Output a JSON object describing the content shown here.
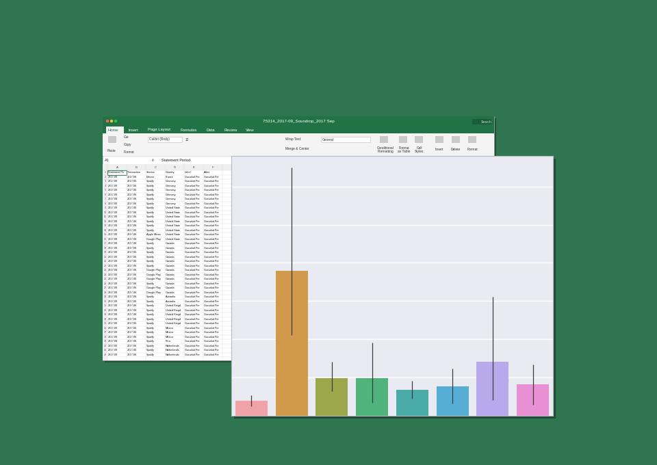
{
  "chart_data": {
    "type": "bar",
    "categories": [
      null,
      null,
      null,
      null,
      null,
      null,
      null,
      null
    ],
    "values": [
      0.39,
      3.79,
      0.98,
      0.98,
      0.68,
      0.77,
      1.41,
      0.82
    ],
    "ci_low": [
      0.25,
      2.11,
      0.64,
      0.34,
      0.45,
      0.32,
      0.41,
      0.29
    ],
    "ci_high": [
      0.54,
      6.5,
      1.41,
      1.91,
      0.91,
      1.23,
      3.11,
      1.34
    ],
    "colors": [
      "#f1a2a9",
      "#d0994b",
      "#9ca64b",
      "#4fb47b",
      "#4aaba8",
      "#57aed5",
      "#b8a8ec",
      "#e990d5"
    ],
    "ylim": [
      0,
      6.8
    ],
    "yticks": [
      0,
      1,
      2,
      3,
      4,
      5,
      6
    ],
    "grid": true,
    "tick_labels": false
  },
  "spreadsheet": {
    "window_title": "75314_2017-09_Soundrop_2017 Sep",
    "search": "Search",
    "tabs": [
      "Home",
      "Insert",
      "Page Layout",
      "Formulas",
      "Data",
      "Review",
      "View"
    ],
    "ribbon": [
      "Paste",
      "Cut",
      "Copy",
      "Format",
      "Calibri (Body)",
      "12",
      "Wrap Text",
      "Merge & Center",
      "General",
      "Conditional\nFormatting",
      "Format\nas Table",
      "Cell\nStyles",
      "Insert",
      "Delete",
      "Format"
    ],
    "name_box": "A1",
    "formula_prefix": "fx",
    "formula": "Statement Period",
    "columns": [
      "A",
      "B",
      "C",
      "D",
      "E",
      "F"
    ],
    "row_numbers": [
      1,
      2,
      3,
      4,
      5,
      6,
      7,
      8,
      9,
      10,
      11,
      12,
      13,
      14,
      15,
      16,
      17,
      18,
      19,
      20,
      21,
      22,
      23,
      24,
      25,
      26,
      27,
      28,
      29,
      30,
      31,
      32,
      33,
      34,
      35,
      36,
      37,
      38,
      39,
      40,
      41,
      42
    ],
    "rows": [
      [
        "Statement Pe",
        "Transaction",
        "Service",
        "Country",
        "Label",
        "Artist"
      ],
      [
        "2017-09",
        "2017-06",
        "Deezer",
        "France",
        "Gurudutt Per",
        "Gurudutt Per"
      ],
      [
        "2017-09",
        "2017-06",
        "Spotify",
        "Germany",
        "Gurudutt Per",
        "Gurudutt Per"
      ],
      [
        "2017-09",
        "2017-06",
        "Spotify",
        "Germany",
        "Gurudutt Per",
        "Gurudutt Per"
      ],
      [
        "2017-09",
        "2017-06",
        "Spotify",
        "Germany",
        "Gurudutt Per",
        "Gurudutt Per"
      ],
      [
        "2017-09",
        "2017-06",
        "Spotify",
        "Germany",
        "Gurudutt Per",
        "Gurudutt Per"
      ],
      [
        "2017-09",
        "2017-06",
        "Spotify",
        "Germany",
        "Gurudutt Per",
        "Gurudutt Per"
      ],
      [
        "2017-09",
        "2017-06",
        "Spotify",
        "Germany",
        "Gurudutt Per",
        "Gurudutt Per"
      ],
      [
        "2017-09",
        "2017-06",
        "Spotify",
        "United State",
        "Gurudutt Per",
        "Gurudutt Per"
      ],
      [
        "2017-09",
        "2017-06",
        "Spotify",
        "United State",
        "Gurudutt Per",
        "Gurudutt Per"
      ],
      [
        "2017-09",
        "2017-06",
        "Spotify",
        "United State",
        "Gurudutt Per",
        "Gurudutt Per"
      ],
      [
        "2017-09",
        "2017-06",
        "Spotify",
        "United State",
        "Gurudutt Per",
        "Gurudutt Per"
      ],
      [
        "2017-09",
        "2017-06",
        "Spotify",
        "United State",
        "Gurudutt Per",
        "Gurudutt Per"
      ],
      [
        "2017-09",
        "2017-06",
        "Spotify",
        "United State",
        "Gurudutt Per",
        "Gurudutt Per"
      ],
      [
        "2017-09",
        "2017-06",
        "Apple Music",
        "United State",
        "Gurudutt Per",
        "Gurudutt Per"
      ],
      [
        "2017-09",
        "2017-06",
        "Google Play",
        "United State",
        "Gurudutt Per",
        "Gurudutt Per"
      ],
      [
        "2017-09",
        "2017-06",
        "Spotify",
        "Canada",
        "Gurudutt Per",
        "Gurudutt Per"
      ],
      [
        "2017-09",
        "2017-06",
        "Spotify",
        "Canada",
        "Gurudutt Per",
        "Gurudutt Per"
      ],
      [
        "2017-09",
        "2017-06",
        "Spotify",
        "Canada",
        "Gurudutt Per",
        "Gurudutt Per"
      ],
      [
        "2017-09",
        "2017-06",
        "Spotify",
        "Canada",
        "Gurudutt Per",
        "Gurudutt Per"
      ],
      [
        "2017-09",
        "2017-06",
        "Spotify",
        "Canada",
        "Gurudutt Per",
        "Gurudutt Per"
      ],
      [
        "2017-09",
        "2017-06",
        "Spotify",
        "Canada",
        "Gurudutt Per",
        "Gurudutt Per"
      ],
      [
        "2017-09",
        "2017-06",
        "Google Play",
        "Canada",
        "Gurudutt Per",
        "Gurudutt Per"
      ],
      [
        "2017-09",
        "2017-06",
        "Google Play",
        "Canada",
        "Gurudutt Per",
        "Gurudutt Per"
      ],
      [
        "2017-09",
        "2017-06",
        "Google Play",
        "Canada",
        "Gurudutt Per",
        "Gurudutt Per"
      ],
      [
        "2017-09",
        "2017-06",
        "Spotify",
        "Canada",
        "Gurudutt Per",
        "Gurudutt Per"
      ],
      [
        "2017-09",
        "2017-06",
        "Google Play",
        "Canada",
        "Gurudutt Per",
        "Gurudutt Per"
      ],
      [
        "2017-09",
        "2017-06",
        "Google Play",
        "Canada",
        "Gurudutt Per",
        "Gurudutt Per"
      ],
      [
        "2017-09",
        "2017-06",
        "Spotify",
        "Australia",
        "Gurudutt Per",
        "Gurudutt Per"
      ],
      [
        "2017-09",
        "2017-06",
        "Spotify",
        "Australia",
        "Gurudutt Per",
        "Gurudutt Per"
      ],
      [
        "2017-09",
        "2017-06",
        "Spotify",
        "United Kingd",
        "Gurudutt Per",
        "Gurudutt Per"
      ],
      [
        "2017-09",
        "2017-06",
        "Spotify",
        "United Kingd",
        "Gurudutt Per",
        "Gurudutt Per"
      ],
      [
        "2017-09",
        "2017-06",
        "Spotify",
        "United Kingd",
        "Gurudutt Per",
        "Gurudutt Per"
      ],
      [
        "2017-09",
        "2017-06",
        "Spotify",
        "United Kingd",
        "Gurudutt Per",
        "Gurudutt Per"
      ],
      [
        "2017-09",
        "2017-06",
        "Spotify",
        "United Kingd",
        "Gurudutt Per",
        "Gurudutt Per"
      ],
      [
        "2017-09",
        "2017-06",
        "Spotify",
        "Mexico",
        "Gurudutt Per",
        "Gurudutt Per"
      ],
      [
        "2017-09",
        "2017-06",
        "Spotify",
        "Mexico",
        "Gurudutt Per",
        "Gurudutt Per"
      ],
      [
        "2017-09",
        "2017-06",
        "Spotify",
        "Mexico",
        "Gurudutt Per",
        "Gurudutt Per"
      ],
      [
        "2017-09",
        "2017-06",
        "Spotify",
        "Peru",
        "Gurudutt Per",
        "Gurudutt Per"
      ],
      [
        "2017-09",
        "2017-06",
        "Spotify",
        "Netherlands",
        "Gurudutt Per",
        "Gurudutt Per"
      ],
      [
        "2017-09",
        "2017-06",
        "Spotify",
        "Netherlands",
        "Gurudutt Per",
        "Gurudutt Per"
      ],
      [
        "2017-09",
        "2017-06",
        "Spotify",
        "Netherlands",
        "Gurudutt Per",
        "Gurudutt Per"
      ]
    ]
  }
}
